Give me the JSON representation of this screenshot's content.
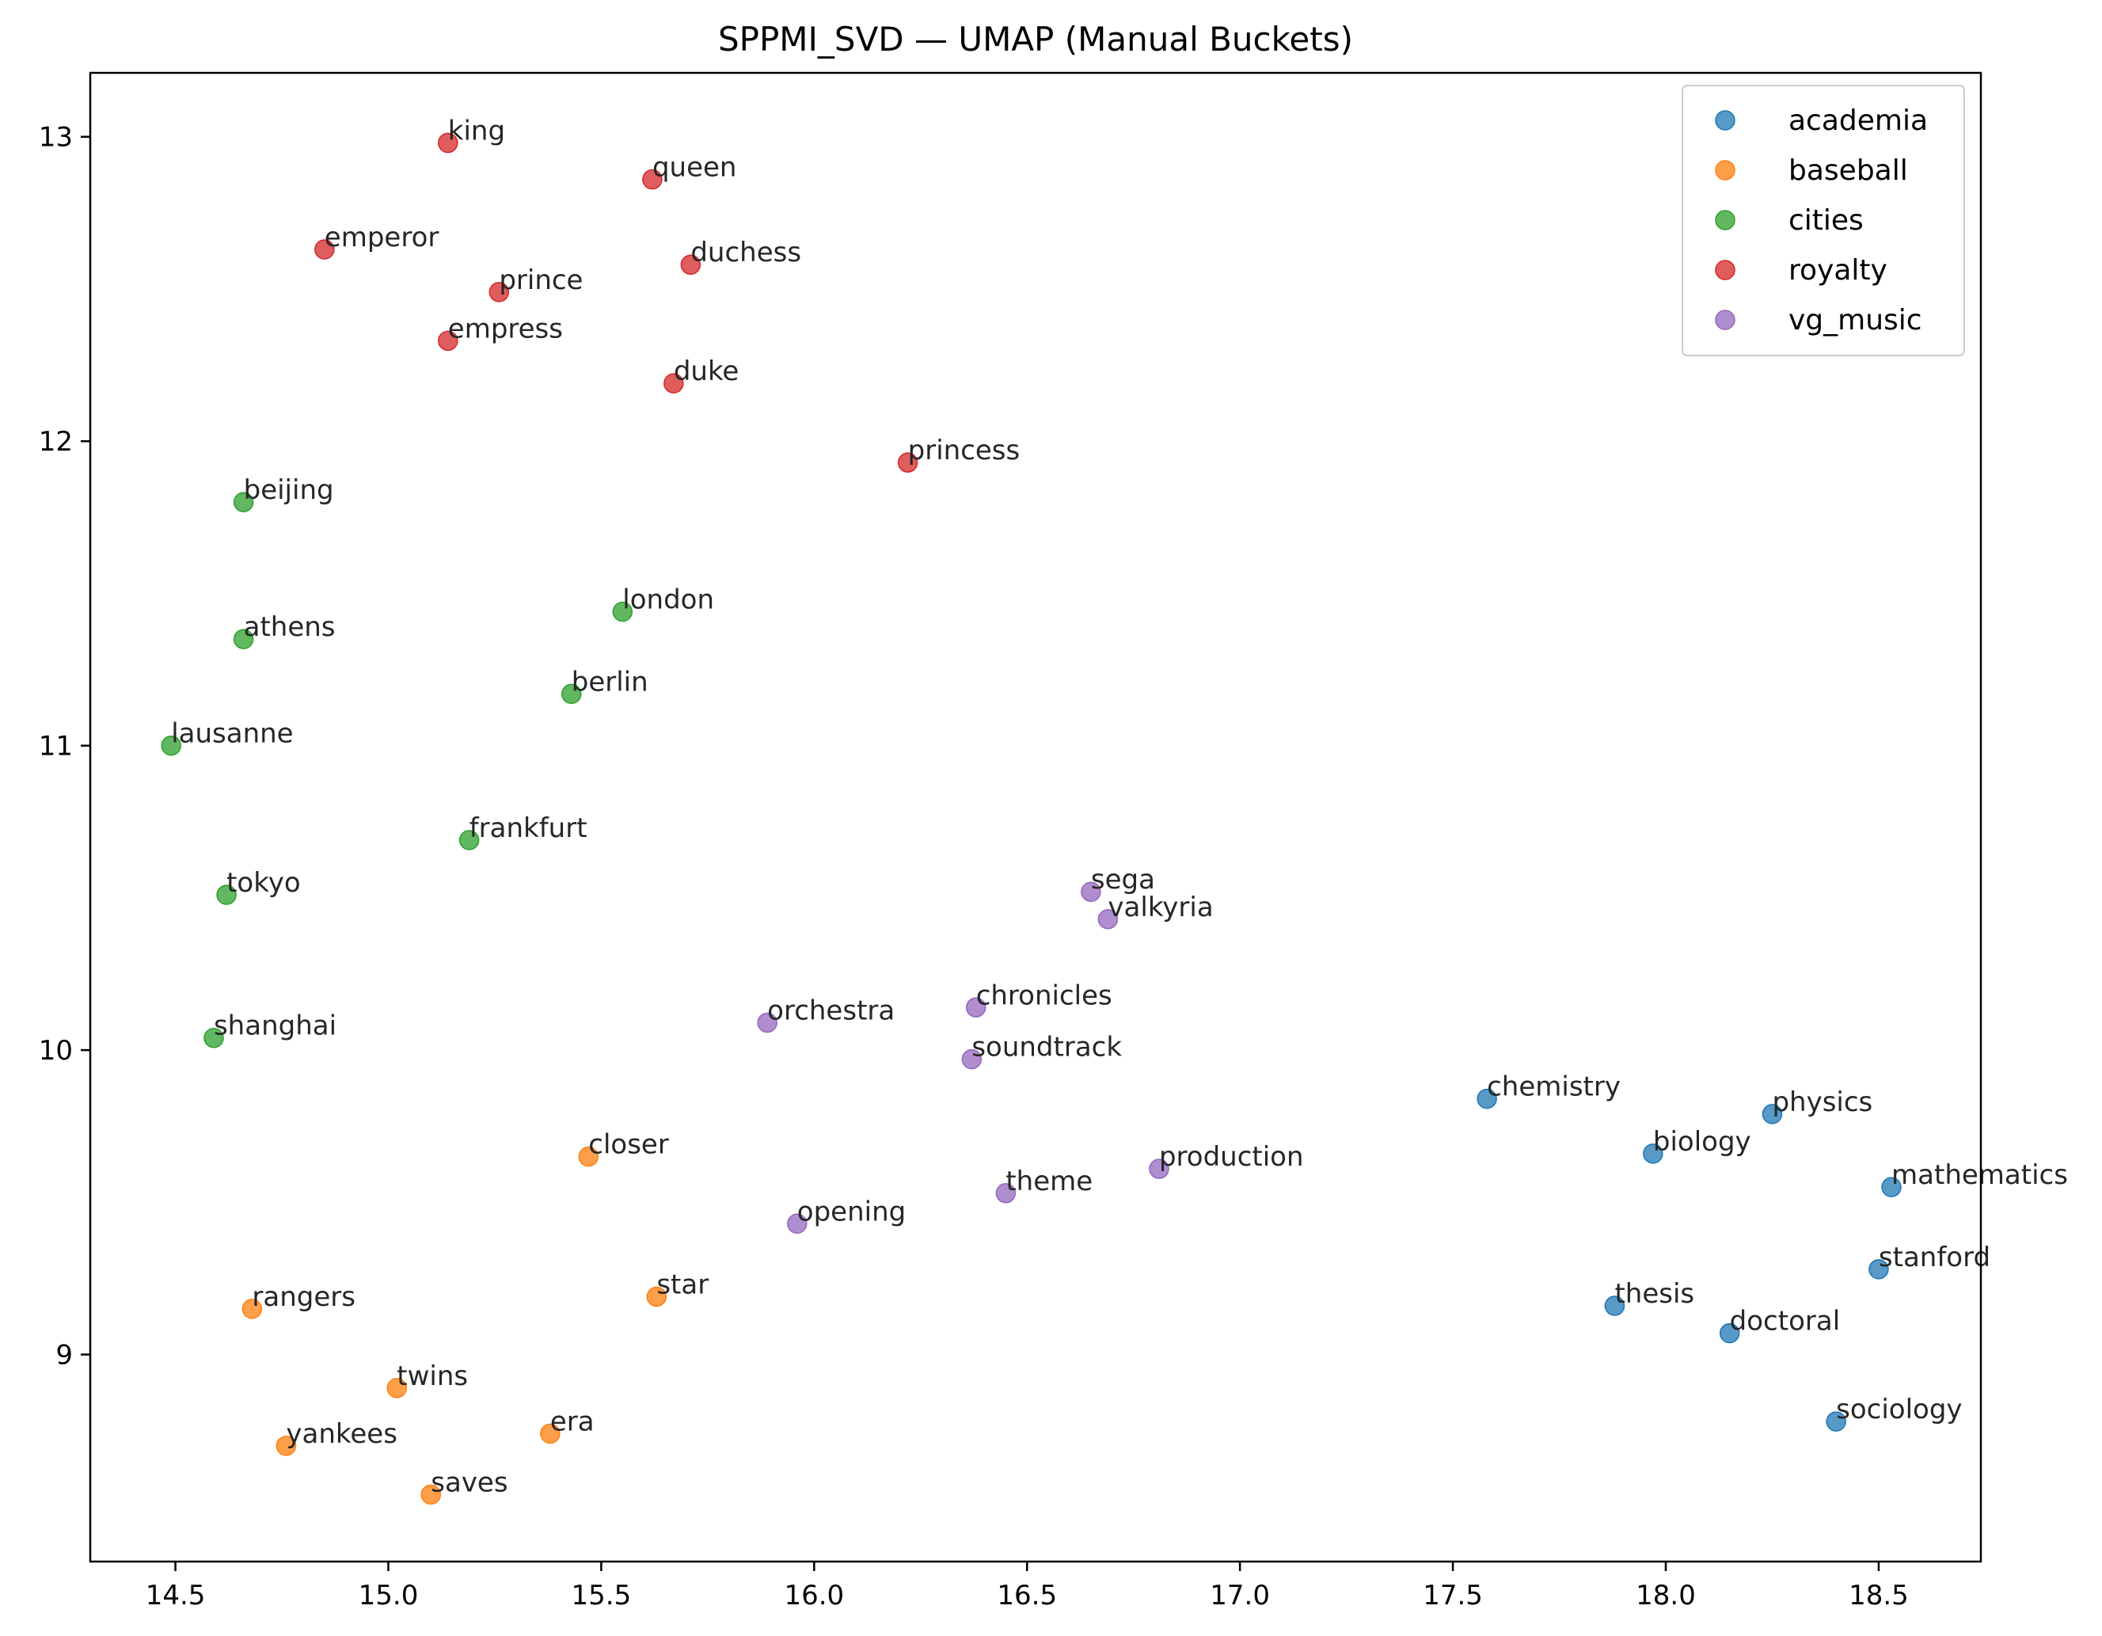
{
  "chart_data": {
    "type": "scatter",
    "title": "SPPMI_SVD — UMAP (Manual Buckets)",
    "xlabel": "",
    "ylabel": "",
    "xlim": [
      14.3,
      18.74
    ],
    "ylim": [
      8.32,
      13.21
    ],
    "xticks": [
      14.5,
      15.0,
      15.5,
      16.0,
      16.5,
      17.0,
      17.5,
      18.0,
      18.5
    ],
    "xtick_labels": [
      "14.5",
      "15.0",
      "15.5",
      "16.0",
      "16.5",
      "17.0",
      "17.5",
      "18.0",
      "18.5"
    ],
    "yticks": [
      9,
      10,
      11,
      12,
      13
    ],
    "ytick_labels": [
      "9",
      "10",
      "11",
      "12",
      "13"
    ],
    "grid": false,
    "legend_position": "top-right",
    "series": [
      {
        "name": "academia",
        "color": "#1f77b4",
        "points": [
          {
            "label": "chemistry",
            "x": 17.58,
            "y": 9.84
          },
          {
            "label": "physics",
            "x": 18.25,
            "y": 9.79
          },
          {
            "label": "biology",
            "x": 17.97,
            "y": 9.66
          },
          {
            "label": "mathematics",
            "x": 18.53,
            "y": 9.55
          },
          {
            "label": "stanford",
            "x": 18.5,
            "y": 9.28
          },
          {
            "label": "thesis",
            "x": 17.88,
            "y": 9.16
          },
          {
            "label": "doctoral",
            "x": 18.15,
            "y": 9.07
          },
          {
            "label": "sociology",
            "x": 18.4,
            "y": 8.78
          }
        ]
      },
      {
        "name": "baseball",
        "color": "#ff7f0e",
        "points": [
          {
            "label": "closer",
            "x": 15.47,
            "y": 9.65
          },
          {
            "label": "star",
            "x": 15.63,
            "y": 9.19
          },
          {
            "label": "rangers",
            "x": 14.68,
            "y": 9.15
          },
          {
            "label": "twins",
            "x": 15.02,
            "y": 8.89
          },
          {
            "label": "era",
            "x": 15.38,
            "y": 8.74
          },
          {
            "label": "yankees",
            "x": 14.76,
            "y": 8.7
          },
          {
            "label": "saves",
            "x": 15.1,
            "y": 8.54
          }
        ]
      },
      {
        "name": "cities",
        "color": "#2ca02c",
        "points": [
          {
            "label": "beijing",
            "x": 14.66,
            "y": 11.8
          },
          {
            "label": "london",
            "x": 15.55,
            "y": 11.44
          },
          {
            "label": "athens",
            "x": 14.66,
            "y": 11.35
          },
          {
            "label": "berlin",
            "x": 15.43,
            "y": 11.17
          },
          {
            "label": "lausanne",
            "x": 14.49,
            "y": 11.0
          },
          {
            "label": "frankfurt",
            "x": 15.19,
            "y": 10.69
          },
          {
            "label": "tokyo",
            "x": 14.62,
            "y": 10.51
          },
          {
            "label": "shanghai",
            "x": 14.59,
            "y": 10.04
          }
        ]
      },
      {
        "name": "royalty",
        "color": "#d62728",
        "points": [
          {
            "label": "king",
            "x": 15.14,
            "y": 12.98
          },
          {
            "label": "queen",
            "x": 15.62,
            "y": 12.86
          },
          {
            "label": "emperor",
            "x": 14.85,
            "y": 12.63
          },
          {
            "label": "duchess",
            "x": 15.71,
            "y": 12.58
          },
          {
            "label": "prince",
            "x": 15.26,
            "y": 12.49
          },
          {
            "label": "empress",
            "x": 15.14,
            "y": 12.33
          },
          {
            "label": "duke",
            "x": 15.67,
            "y": 12.19
          },
          {
            "label": "princess",
            "x": 16.22,
            "y": 11.93
          }
        ]
      },
      {
        "name": "vg_music",
        "color": "#9467bd",
        "points": [
          {
            "label": "sega",
            "x": 16.65,
            "y": 10.52
          },
          {
            "label": "valkyria",
            "x": 16.69,
            "y": 10.43
          },
          {
            "label": "chronicles",
            "x": 16.38,
            "y": 10.14
          },
          {
            "label": "orchestra",
            "x": 15.89,
            "y": 10.09
          },
          {
            "label": "soundtrack",
            "x": 16.37,
            "y": 9.97
          },
          {
            "label": "production",
            "x": 16.81,
            "y": 9.61
          },
          {
            "label": "theme",
            "x": 16.45,
            "y": 9.53
          },
          {
            "label": "opening",
            "x": 15.96,
            "y": 9.43
          }
        ]
      }
    ]
  }
}
